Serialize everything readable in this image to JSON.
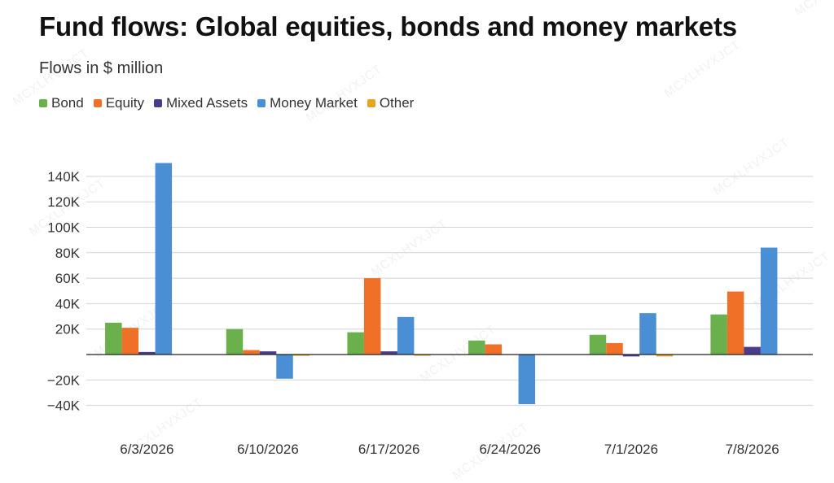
{
  "title": "Fund flows: Global equities, bonds and money markets",
  "subtitle": "Flows in $ million",
  "watermark": "MCXLHVXJCT",
  "chart_data": {
    "type": "bar",
    "title": "Fund flows: Global equities, bonds and money markets",
    "subtitle": "Flows in $ million",
    "categories": [
      "6/3/2026",
      "6/10/2026",
      "6/17/2026",
      "6/24/2026",
      "7/1/2026",
      "7/8/2026"
    ],
    "series": [
      {
        "name": "Bond",
        "color": "#6ab04c",
        "values": [
          25000,
          20000,
          17500,
          11000,
          15500,
          31500
        ]
      },
      {
        "name": "Equity",
        "color": "#f07027",
        "values": [
          21000,
          3500,
          60000,
          8000,
          9000,
          49500
        ]
      },
      {
        "name": "Mixed Assets",
        "color": "#4b3b8c",
        "values": [
          2000,
          2500,
          2500,
          0,
          -1500,
          6000
        ]
      },
      {
        "name": "Money Market",
        "color": "#4a8fd4",
        "values": [
          150500,
          -19000,
          29500,
          -39000,
          32500,
          84000
        ]
      },
      {
        "name": "Other",
        "color": "#e6a520",
        "values": [
          0,
          -1000,
          -500,
          0,
          -1500,
          0
        ]
      }
    ],
    "ylim": [
      -40000,
      150000
    ],
    "yticks": [
      -40000,
      -20000,
      20000,
      40000,
      60000,
      80000,
      100000,
      120000,
      140000
    ],
    "ytick_labels": [
      "−40K",
      "−20K",
      "20K",
      "40K",
      "60K",
      "80K",
      "100K",
      "120K",
      "140K"
    ],
    "xlabel": "",
    "ylabel": "",
    "grid": true,
    "legend_position": "top-left"
  }
}
